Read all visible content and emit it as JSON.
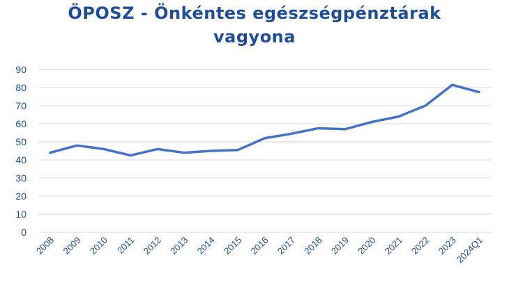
{
  "chart_data": {
    "type": "line",
    "title_lines": [
      "ÖPOSZ - Önkéntes egészségpénztárak",
      "vagyona"
    ],
    "categories": [
      "2008",
      "2009",
      "2010",
      "2011",
      "2012",
      "2013",
      "2014",
      "2015",
      "2016",
      "2017",
      "2018",
      "2019",
      "2020",
      "2021",
      "2022",
      "2023",
      "2024Q1"
    ],
    "series": [
      {
        "values": [
          44,
          48,
          46,
          42.5,
          46,
          44,
          45,
          45.5,
          52,
          54.5,
          57.5,
          57,
          61,
          64,
          70,
          81.5,
          77.5
        ],
        "color": "#4472c4"
      }
    ],
    "ylim": [
      0,
      90
    ],
    "yticks": [
      0,
      10,
      20,
      30,
      40,
      50,
      60,
      70,
      80,
      90
    ],
    "grid": true,
    "legend": "none",
    "colors": {
      "title": "#1f4e96",
      "tick_labels": "#1f4e96",
      "gridline": "#d9d9d9",
      "line": "#4472c4"
    }
  }
}
